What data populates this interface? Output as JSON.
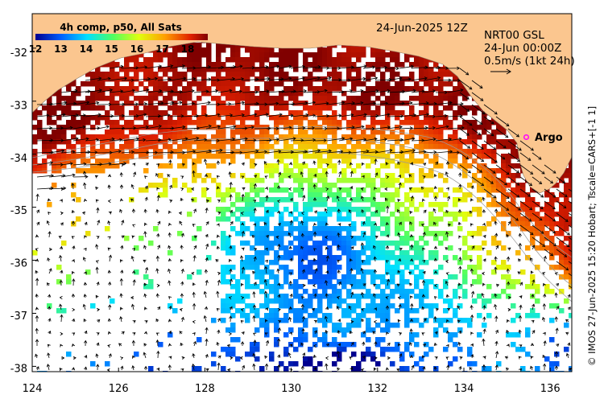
{
  "map": {
    "title_date": "24-Jun-2025 12Z",
    "product": "NRT00 GSL",
    "vector_time": "24-Jun 00:00Z",
    "scale_label": "0.5m/s (1kt 24h)",
    "colorbar_title": "4h comp, p50, All Sats",
    "colorbar_ticks": [
      "12",
      "13",
      "14",
      "15",
      "16",
      "17",
      "18"
    ],
    "colorbar_range": [
      12,
      18.8
    ],
    "argo_label": "Argo",
    "credit": "© IMOS 27-Jun-2025 15:20 Hobart; Tscale=CARS+[-1 1]",
    "lon_ticks": [
      "124",
      "126",
      "128",
      "130",
      "132",
      "134",
      "136"
    ],
    "lat_ticks": [
      "-32",
      "-33",
      "-34",
      "-35",
      "-36",
      "-37",
      "-38"
    ],
    "lon_range": [
      124,
      136.5
    ],
    "lat_range": [
      -31.35,
      -38.1
    ],
    "colors": {
      "land": "#fbc68f",
      "nodata": "#ffffff",
      "argo": "#ff00ff"
    }
  }
}
